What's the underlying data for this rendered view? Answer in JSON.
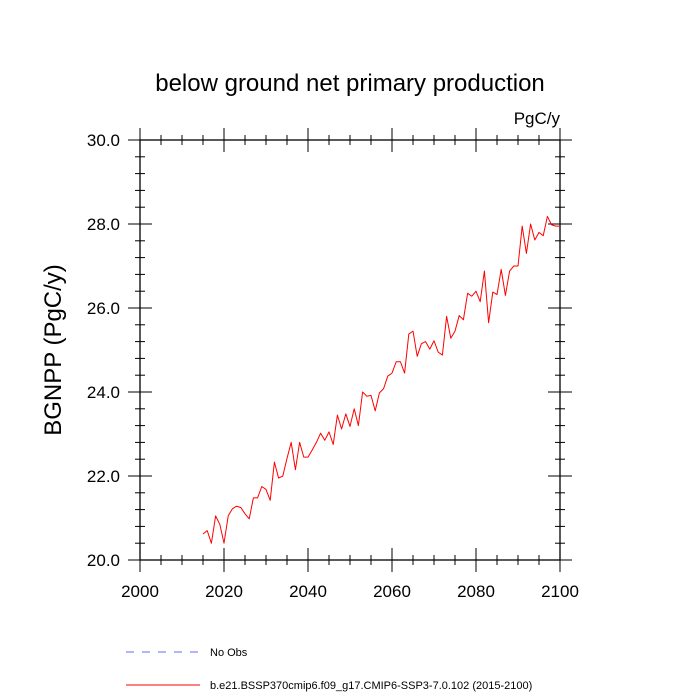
{
  "chart_data": {
    "type": "line",
    "title": "below ground net primary production",
    "units_label": "PgC/y",
    "ylabel": "BGNPP  (PgC/y)",
    "xlabel": "",
    "xlim": [
      2000,
      2100
    ],
    "ylim": [
      20.0,
      30.0
    ],
    "x_ticks": [
      2000,
      2020,
      2040,
      2060,
      2080,
      2100
    ],
    "x_tick_labels": [
      "2000",
      "2020",
      "2040",
      "2060",
      "2080",
      "2100"
    ],
    "y_ticks": [
      20,
      22,
      24,
      26,
      28,
      30
    ],
    "y_tick_labels": [
      "20.0",
      "22.0",
      "24.0",
      "26.0",
      "28.0",
      "30.0"
    ],
    "grid": false,
    "series": [
      {
        "name": "b.e21.BSSP370cmip6.f09_g17.CMIP6-SSP3-7.0.102 (2015-2100)",
        "color": "#ff0000",
        "style": "solid",
        "x": [
          2015,
          2016,
          2017,
          2018,
          2019,
          2020,
          2021,
          2022,
          2023,
          2024,
          2025,
          2026,
          2027,
          2028,
          2029,
          2030,
          2031,
          2032,
          2033,
          2034,
          2035,
          2036,
          2037,
          2038,
          2039,
          2040,
          2041,
          2042,
          2043,
          2044,
          2045,
          2046,
          2047,
          2048,
          2049,
          2050,
          2051,
          2052,
          2053,
          2054,
          2055,
          2056,
          2057,
          2058,
          2059,
          2060,
          2061,
          2062,
          2063,
          2064,
          2065,
          2066,
          2067,
          2068,
          2069,
          2070,
          2071,
          2072,
          2073,
          2074,
          2075,
          2076,
          2077,
          2078,
          2079,
          2080,
          2081,
          2082,
          2083,
          2084,
          2085,
          2086,
          2087,
          2088,
          2089,
          2090,
          2091,
          2092,
          2093,
          2094,
          2095,
          2096,
          2097,
          2098,
          2099,
          2100
        ],
        "values": [
          20.62,
          20.7,
          20.4,
          21.05,
          20.85,
          20.4,
          21.05,
          21.22,
          21.28,
          21.25,
          21.1,
          20.98,
          21.48,
          21.48,
          21.75,
          21.68,
          21.42,
          22.33,
          21.95,
          22.0,
          22.42,
          22.8,
          22.15,
          22.8,
          22.45,
          22.45,
          22.62,
          22.8,
          23.02,
          22.85,
          23.05,
          22.75,
          23.45,
          23.12,
          23.48,
          23.18,
          23.6,
          23.2,
          24.0,
          23.9,
          23.92,
          23.55,
          23.98,
          24.08,
          24.38,
          24.45,
          24.72,
          24.72,
          24.45,
          25.38,
          25.45,
          24.85,
          25.15,
          25.2,
          25.02,
          25.22,
          24.95,
          24.88,
          25.8,
          25.28,
          25.45,
          25.82,
          25.72,
          26.35,
          26.28,
          26.4,
          26.15,
          26.88,
          25.65,
          26.38,
          26.32,
          26.92,
          26.3,
          26.88,
          27.0,
          27.0,
          27.95,
          27.3,
          28.0,
          27.62,
          27.8,
          27.72,
          28.18,
          27.98,
          27.95,
          27.95
        ]
      }
    ],
    "legend": {
      "placement": "bottom",
      "entries": [
        {
          "label": "No Obs",
          "color": "#6b6bff",
          "style": "dashed"
        },
        {
          "label": "b.e21.BSSP370cmip6.f09_g17.CMIP6-SSP3-7.0.102 (2015-2100)",
          "color": "#ff0000",
          "style": "solid"
        }
      ]
    }
  }
}
